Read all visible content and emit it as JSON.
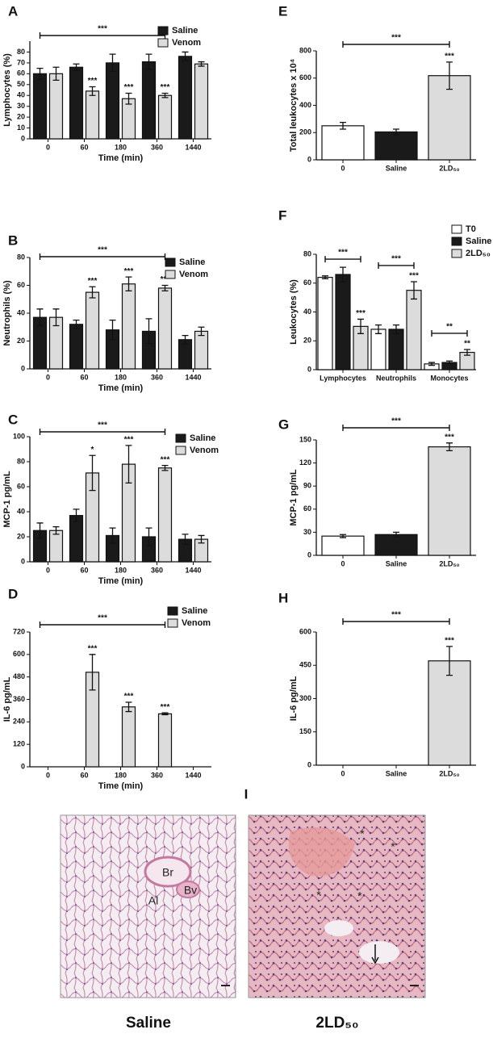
{
  "chart_data": [
    {
      "type": "bar",
      "panel": "A",
      "ylabel": "Lymphocytes (%)",
      "xlabel": "Time (min)",
      "categories": [
        "0",
        "60",
        "180",
        "360",
        "1440"
      ],
      "series": [
        {
          "name": "Saline",
          "color": "#1a1a1a",
          "values": [
            60,
            66,
            70,
            71,
            76
          ],
          "errors": [
            5,
            3,
            8,
            7,
            4
          ],
          "star_labels": [
            null,
            null,
            null,
            null,
            null
          ]
        },
        {
          "name": "Venom",
          "color": "#dcdcdc",
          "values": [
            60,
            44,
            37,
            40,
            69
          ],
          "errors": [
            6,
            4,
            5,
            2,
            2
          ],
          "star_labels": [
            null,
            "***",
            "***",
            "***",
            null
          ]
        }
      ],
      "ylim": [
        0,
        90
      ],
      "yticks": [
        0,
        10,
        20,
        30,
        40,
        50,
        60,
        70,
        80
      ],
      "legend": "upper right",
      "brackets": [
        {
          "label": "***",
          "from": "0",
          "to": "360"
        }
      ]
    },
    {
      "type": "bar",
      "panel": "B",
      "ylabel": "Neutrophils (%)",
      "xlabel": "Time (min)",
      "categories": [
        "0",
        "60",
        "180",
        "360",
        "1440"
      ],
      "series": [
        {
          "name": "Saline",
          "color": "#1a1a1a",
          "values": [
            37,
            32,
            28,
            27,
            21
          ],
          "errors": [
            6,
            3,
            7,
            9,
            3
          ],
          "star_labels": [
            null,
            null,
            null,
            null,
            null
          ]
        },
        {
          "name": "Venom",
          "color": "#dcdcdc",
          "values": [
            37,
            55,
            61,
            58,
            27
          ],
          "errors": [
            6,
            4,
            5,
            2,
            3
          ],
          "star_labels": [
            null,
            "***",
            "***",
            "***",
            null
          ]
        }
      ],
      "ylim": [
        0,
        80
      ],
      "yticks": [
        0,
        20,
        40,
        60,
        80
      ],
      "legend": "upper right",
      "brackets": [
        {
          "label": "***",
          "from": "0",
          "to": "360"
        }
      ]
    },
    {
      "type": "bar",
      "panel": "C",
      "ylabel": "MCP-1 pg/mL",
      "xlabel": "Time (min)",
      "categories": [
        "0",
        "60",
        "180",
        "360",
        "1440"
      ],
      "series": [
        {
          "name": "Saline",
          "color": "#1a1a1a",
          "values": [
            25,
            37,
            21,
            20,
            18
          ],
          "errors": [
            6,
            5,
            6,
            7,
            4
          ],
          "star_labels": [
            null,
            null,
            null,
            null,
            null
          ]
        },
        {
          "name": "Venom",
          "color": "#dcdcdc",
          "values": [
            25,
            71,
            78,
            75,
            18
          ],
          "errors": [
            3,
            14,
            15,
            2,
            3
          ],
          "star_labels": [
            null,
            "*",
            "***",
            "***",
            null
          ]
        }
      ],
      "ylim": [
        0,
        100
      ],
      "yticks": [
        0,
        20,
        40,
        60,
        80,
        100
      ],
      "legend": "upper right",
      "brackets": [
        {
          "label": "***",
          "from": "0",
          "to": "360"
        }
      ]
    },
    {
      "type": "bar",
      "panel": "D",
      "ylabel": "IL-6 pg/mL",
      "xlabel": "Time (min)",
      "categories": [
        "0",
        "60",
        "180",
        "360",
        "1440"
      ],
      "series": [
        {
          "name": "Saline",
          "color": "#1a1a1a",
          "values": [
            0,
            0,
            0,
            0,
            0
          ],
          "errors": [
            0,
            0,
            0,
            0,
            0
          ],
          "star_labels": [
            null,
            null,
            null,
            null,
            null
          ]
        },
        {
          "name": "Venom",
          "color": "#dcdcdc",
          "values": [
            0,
            505,
            320,
            283,
            0
          ],
          "errors": [
            0,
            95,
            25,
            5,
            0
          ],
          "star_labels": [
            null,
            "***",
            "***",
            "***",
            null
          ]
        }
      ],
      "ylim": [
        0,
        720
      ],
      "yticks": [
        0,
        120,
        240,
        360,
        480,
        600,
        720
      ],
      "legend": "upper right",
      "brackets": [
        {
          "label": "***",
          "from": "0",
          "to": "360"
        }
      ]
    },
    {
      "type": "bar",
      "panel": "E",
      "ylabel": "Total leukocytes x 10⁴",
      "categories": [
        "0",
        "Saline",
        "2LD₅₀"
      ],
      "series": [
        {
          "colors": [
            "#ffffff",
            "#1a1a1a",
            "#dcdcdc"
          ],
          "values": [
            250,
            205,
            618
          ],
          "errors": [
            25,
            20,
            100
          ],
          "star_labels": [
            null,
            null,
            "***"
          ]
        }
      ],
      "ylim": [
        0,
        800
      ],
      "yticks": [
        0,
        200,
        400,
        600,
        800
      ],
      "brackets": [
        {
          "label": "***",
          "from": "0",
          "to": "2LD₅₀"
        }
      ]
    },
    {
      "type": "bar",
      "panel": "F",
      "ylabel": "Leukocytes (%)",
      "categories": [
        "Lymphocytes",
        "Neutrophils",
        "Monocytes"
      ],
      "series": [
        {
          "name": "T0",
          "color": "#ffffff",
          "values": [
            64,
            28,
            4
          ],
          "errors": [
            1,
            3,
            1
          ],
          "star_labels": [
            null,
            null,
            null
          ]
        },
        {
          "name": "Saline",
          "color": "#1a1a1a",
          "values": [
            66,
            28,
            5
          ],
          "errors": [
            5,
            3,
            1
          ],
          "star_labels": [
            null,
            null,
            null
          ]
        },
        {
          "name": "2LD₅₀",
          "color": "#dcdcdc",
          "values": [
            30,
            55,
            12
          ],
          "errors": [
            5,
            6,
            2
          ],
          "star_labels": [
            "***",
            "***",
            "**"
          ]
        }
      ],
      "ylim": [
        0,
        80
      ],
      "yticks": [
        0,
        20,
        40,
        60,
        80
      ],
      "legend": "upper right",
      "brackets": [
        {
          "label": "***",
          "category": "Lymphocytes"
        },
        {
          "label": "***",
          "category": "Neutrophils"
        },
        {
          "label": "**",
          "category": "Monocytes"
        }
      ]
    },
    {
      "type": "bar",
      "panel": "G",
      "ylabel": "MCP-1 pg/mL",
      "categories": [
        "0",
        "Saline",
        "2LD₅₀"
      ],
      "series": [
        {
          "colors": [
            "#ffffff",
            "#1a1a1a",
            "#dcdcdc"
          ],
          "values": [
            25,
            27,
            141
          ],
          "errors": [
            2,
            3,
            5
          ],
          "star_labels": [
            null,
            null,
            "***"
          ]
        }
      ],
      "ylim": [
        0,
        150
      ],
      "yticks": [
        0,
        30,
        60,
        90,
        120,
        150
      ],
      "brackets": [
        {
          "label": "***",
          "from": "0",
          "to": "2LD₅₀"
        }
      ]
    },
    {
      "type": "bar",
      "panel": "H",
      "ylabel": "IL-6 pg/mL",
      "categories": [
        "0",
        "Saline",
        "2LD₅₀"
      ],
      "series": [
        {
          "colors": [
            "#ffffff",
            "#1a1a1a",
            "#dcdcdc"
          ],
          "values": [
            0,
            0,
            470
          ],
          "errors": [
            0,
            0,
            65
          ],
          "star_labels": [
            null,
            null,
            "***"
          ]
        }
      ],
      "ylim": [
        0,
        600
      ],
      "yticks": [
        0,
        150,
        300,
        450,
        600
      ],
      "brackets": [
        {
          "label": "***",
          "from": "0",
          "to": "2LD₅₀"
        }
      ]
    }
  ],
  "histology": {
    "panel": "I",
    "panels": [
      {
        "caption": "Saline",
        "labels": [
          "Br",
          "Bv",
          "Al"
        ]
      },
      {
        "caption": "2LD₅₀",
        "labels": [
          "*",
          "*",
          "*",
          "*"
        ]
      }
    ]
  }
}
